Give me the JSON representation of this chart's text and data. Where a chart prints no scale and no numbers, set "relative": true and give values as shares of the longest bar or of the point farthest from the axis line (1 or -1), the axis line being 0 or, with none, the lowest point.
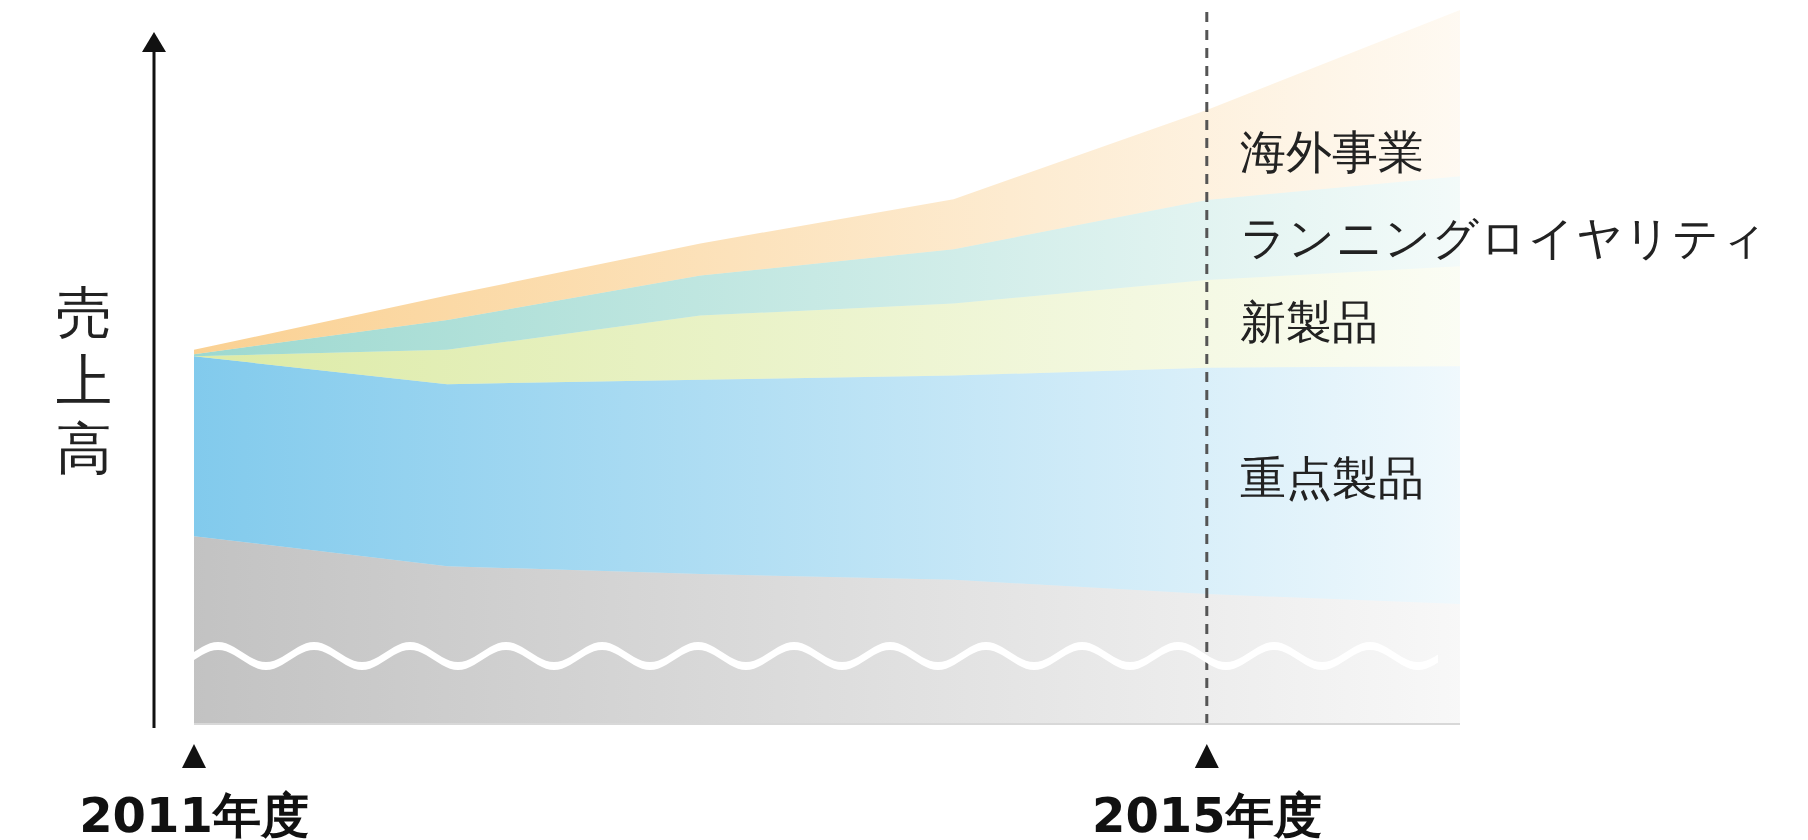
{
  "chart_data": {
    "type": "area",
    "stacked": true,
    "relative": true,
    "ylabel": "売上高",
    "x": [
      2011,
      2012,
      2013,
      2014,
      2015,
      2016
    ],
    "xlim": [
      2011,
      2016
    ],
    "xticks": [
      {
        "value": 2011,
        "label": "2011年度"
      },
      {
        "value": 2015,
        "label": "2015年度"
      }
    ],
    "legend": false,
    "grid": false,
    "series": [
      {
        "color": "#9a9a9a",
        "values": [
          0.263,
          0.221,
          0.21,
          0.202,
          0.182,
          0.168
        ]
      },
      {
        "name": "重点製品",
        "color": "#2ea7e0",
        "values": [
          0.252,
          0.255,
          0.272,
          0.286,
          0.317,
          0.333
        ]
      },
      {
        "name": "新製品",
        "color": "#c5dd6a",
        "values": [
          0,
          0.048,
          0.09,
          0.101,
          0.123,
          0.14
        ]
      },
      {
        "name": "ランニングロイヤリティ",
        "color": "#5bbfb0",
        "values": [
          0.003,
          0.042,
          0.056,
          0.076,
          0.112,
          0.126
        ]
      },
      {
        "name": "海外事業",
        "color": "#f7b24a",
        "values": [
          0.006,
          0.034,
          0.045,
          0.07,
          0.126,
          0.233
        ]
      }
    ],
    "ref_lines": [
      {
        "axis": "x",
        "value": 2015,
        "color": "#555555",
        "line_style": "dashed"
      }
    ]
  }
}
